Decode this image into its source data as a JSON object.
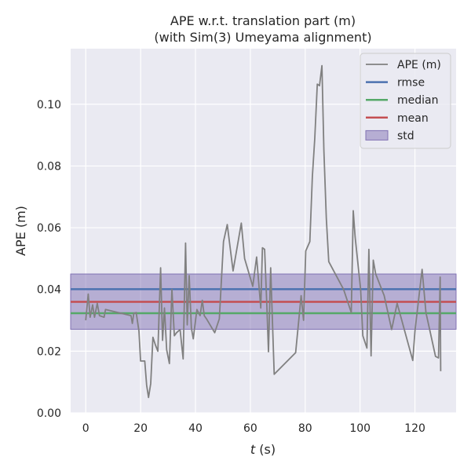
{
  "chart_data": {
    "type": "line",
    "title_line1": "APE w.r.t. translation part (m)",
    "title_line2": "(with Sim(3) Umeyama alignment)",
    "xlabel_var": "t",
    "xlabel_unit": " (s)",
    "ylabel": "APE (m)",
    "xlim": [
      -5.5,
      135
    ],
    "ylim": [
      0,
      0.118
    ],
    "xticks": [
      0,
      20,
      40,
      60,
      80,
      100,
      120
    ],
    "xtick_labels": [
      "0",
      "20",
      "40",
      "60",
      "80",
      "100",
      "120"
    ],
    "yticks": [
      0,
      0.02,
      0.04,
      0.06,
      0.08,
      0.1
    ],
    "ytick_labels": [
      "0.00",
      "0.02",
      "0.04",
      "0.06",
      "0.08",
      "0.10"
    ],
    "grid": true,
    "legend_position": "top-right",
    "legend": [
      {
        "label": "APE (m)",
        "kind": "line",
        "color": "#808080"
      },
      {
        "label": "rmse",
        "kind": "line",
        "color": "#4c72b0"
      },
      {
        "label": "median",
        "kind": "line",
        "color": "#55a868"
      },
      {
        "label": "mean",
        "kind": "line",
        "color": "#c44e52"
      },
      {
        "label": "std",
        "kind": "patch",
        "color": "#8172b3"
      }
    ],
    "stats": {
      "rmse": 0.0401,
      "median": 0.0323,
      "mean": 0.036,
      "std_low": 0.0271,
      "std_high": 0.045
    },
    "colors": {
      "background": "#eaeaf2",
      "grid": "#ffffff",
      "ape": "#808080",
      "rmse": "#4c72b0",
      "median": "#55a868",
      "mean": "#c44e52",
      "std": "#8172b3"
    },
    "series": [
      {
        "name": "APE (m)",
        "x": [
          0,
          0.9,
          1.6,
          2.5,
          3.2,
          4.2,
          5.0,
          6.7,
          7.2,
          16.5,
          17.0,
          17.5,
          18.4,
          19.4,
          20.0,
          21.5,
          22.2,
          22.9,
          23.7,
          24.5,
          25.4,
          26.3,
          27.3,
          28.0,
          28.7,
          29.5,
          30.5,
          31.4,
          32.3,
          33.1,
          34.4,
          35.5,
          36.4,
          37.0,
          37.7,
          38.5,
          39.2,
          40.5,
          41.7,
          42.5,
          43.2,
          44.0,
          47.0,
          48.7,
          50.2,
          51.6,
          53.7,
          56.7,
          57.9,
          60.9,
          62.3,
          63.8,
          64.4,
          65.2,
          66.0,
          66.6,
          67.4,
          68.7,
          76.5,
          78.5,
          79.4,
          80.2,
          81.7,
          82.6,
          83.5,
          84.4,
          85.2,
          86.1,
          86.8,
          87.7,
          88.6,
          94.0,
          96.8,
          97.5,
          98.2,
          100.2,
          101.0,
          102.5,
          103.2,
          104.0,
          104.8,
          105.7,
          108.8,
          111.5,
          113.5,
          119.2,
          120.0,
          122.6,
          124.0,
          127.5,
          128.6,
          129.2,
          129.4
        ],
        "values": [
          0.03,
          0.0385,
          0.031,
          0.035,
          0.031,
          0.0355,
          0.0315,
          0.031,
          0.0335,
          0.0315,
          0.029,
          0.0322,
          0.0325,
          0.0265,
          0.0168,
          0.0168,
          0.009,
          0.005,
          0.0095,
          0.0245,
          0.022,
          0.02,
          0.047,
          0.0235,
          0.034,
          0.0205,
          0.016,
          0.04,
          0.025,
          0.026,
          0.027,
          0.0175,
          0.055,
          0.0285,
          0.0445,
          0.0275,
          0.024,
          0.0335,
          0.0315,
          0.0365,
          0.0315,
          0.0305,
          0.026,
          0.0305,
          0.0555,
          0.061,
          0.046,
          0.0615,
          0.05,
          0.041,
          0.0505,
          0.034,
          0.0535,
          0.053,
          0.035,
          0.0198,
          0.047,
          0.0125,
          0.0195,
          0.038,
          0.03,
          0.0525,
          0.0555,
          0.0765,
          0.089,
          0.1065,
          0.106,
          0.1125,
          0.085,
          0.063,
          0.049,
          0.04,
          0.0325,
          0.0655,
          0.057,
          0.04,
          0.025,
          0.021,
          0.053,
          0.0185,
          0.0495,
          0.045,
          0.038,
          0.027,
          0.0355,
          0.017,
          0.0265,
          0.0465,
          0.0325,
          0.0183,
          0.0178,
          0.044,
          0.0135
        ]
      }
    ]
  }
}
